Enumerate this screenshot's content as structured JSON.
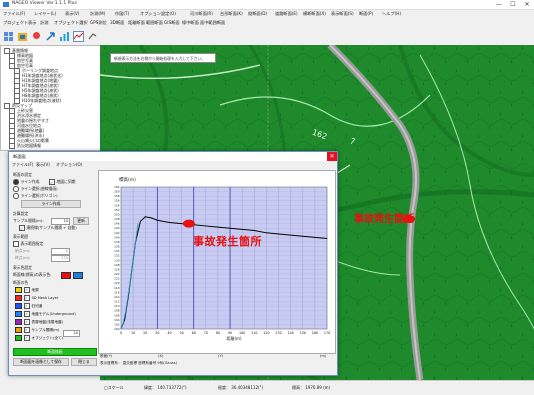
{
  "window": {
    "title": "NAGEO Viewer Ver.1.1.1 Plus",
    "controls": [
      "—",
      "☐",
      "✕"
    ]
  },
  "menubar": [
    "ファイル(F)",
    "レイヤー(L)",
    "表示(V)",
    "計測(M)",
    "作図(T)",
    "オプション設定(O)",
    "河川断面(R)",
    "台形断面(K)",
    "縦断面(D)",
    "道路断面(E)",
    "横断断面(X)",
    "表示断面(S)",
    "断面(P)",
    "ヘルプ(H)"
  ],
  "subbar": [
    "プロジェクト",
    "表示",
    "計測",
    "オブジェクト選択",
    "GPS測位",
    "3D断面",
    "距離断面",
    "範囲断面",
    "GIS断面",
    "線中断面",
    "面中範囲断面"
  ],
  "tree": [
    {
      "label": "基盤情報",
      "indent": 0
    },
    {
      "label": "標高地図",
      "indent": 1
    },
    {
      "label": "航空写真",
      "indent": 1
    },
    {
      "label": "航空写真",
      "indent": 1
    },
    {
      "label": "ボーリング調査地点",
      "indent": 2
    },
    {
      "label": "H1年調査地点(液状化)",
      "indent": 2
    },
    {
      "label": "H1年調査地点(地震)",
      "indent": 2
    },
    {
      "label": "H7年調査地点(液状)",
      "indent": 2
    },
    {
      "label": "H5年調査地点(液状)",
      "indent": 2
    },
    {
      "label": "H8年調査地点(液状)",
      "indent": 2
    },
    {
      "label": "H10年調査地点(液状)",
      "indent": 2
    },
    {
      "label": "防災マップ",
      "indent": 0
    },
    {
      "label": "土砂災害",
      "indent": 1
    },
    {
      "label": "洪水浸水想定",
      "indent": 1
    },
    {
      "label": "地震の揺れやすさ",
      "indent": 1
    },
    {
      "label": "河道水位地点",
      "indent": 1
    },
    {
      "label": "避難場所(地震)",
      "indent": 1
    },
    {
      "label": "避難場所(洪水)",
      "indent": 1
    },
    {
      "label": "火山噴火口の影響",
      "indent": 1
    },
    {
      "label": "防災地図情報",
      "indent": 1
    }
  ],
  "map": {
    "tooltip": "新規表示方法を右側から開始処理を入力して下さい。",
    "label_162": "162",
    "label_7": "7",
    "annotation": "事故発生箇所"
  },
  "statusbar": {
    "scale": "□スケール",
    "coord1": "緯度： 140.733772(°)",
    "coord2": "経度： 36.40348112(°)",
    "elevation": "標高： 1976.89 (m)"
  },
  "dialog": {
    "title": "断面図",
    "menu": [
      "ファイル(F)",
      "表示(V)",
      "オプション(O)"
    ],
    "section_display": "断面の設定",
    "radio_line": "ライン作成",
    "check_section": "地図に同期",
    "radio_polyline": "ライン選択(曲線描画)",
    "radio_polygon": "ライン選択(ポリゴン)",
    "btn_line": "ライン作成",
    "section_calc": "計算設定",
    "sampling_label": "サンプル間隔(m):",
    "sampling_value": "10",
    "btn_update": "更新",
    "check_continuous": "連続線(サンプル間隔 + 自動)",
    "section_range": "表示範囲",
    "check_range": "表示範囲指定",
    "start_label": "始点(m):",
    "start_value": "0",
    "end_label": "終点(m):",
    "end_value": "170",
    "section_color": "表示色設定",
    "color_label": "断面線(標高)の表示色:",
    "legend_title": "断面の色",
    "legend": [
      {
        "label": "地層",
        "color": "#f0d000"
      },
      {
        "label": "3D Mesh Layer",
        "color": "#ff2020"
      },
      {
        "label": "旧河道",
        "color": "#2050ff"
      },
      {
        "label": "地盤モデル(Underground)",
        "color": "#2080ff"
      },
      {
        "label": "表層地盤(浅層地盤)",
        "color": "#a020c0"
      },
      {
        "label": "サンプル間隔(m)",
        "color": "#f0a000"
      },
      {
        "label": "オブジェクト(全て)",
        "color": "#20c020"
      }
    ],
    "sample_value": "10",
    "btn_draw": "断面描画",
    "btn_save": "断面図を画像として保存",
    "btn_close": "閉じる",
    "status_label": "断面(Y)",
    "status_x": "(X)",
    "status_m": "(m)",
    "status_bottom": "表示座標系： 直交座標 座標系番号  9系(Gauss)",
    "annotation": "事故発生箇所",
    "check_y": "(Y)"
  },
  "chart_data": {
    "type": "line",
    "title": "標高(m)",
    "xlabel": "距離(m)",
    "ylabel": "",
    "xlim": [
      0,
      170
    ],
    "ylim": [
      100,
      162
    ],
    "x_ticks": [
      0,
      10,
      20,
      30,
      40,
      50,
      60,
      70,
      80,
      90,
      100,
      110,
      120,
      130,
      140,
      150,
      160,
      170
    ],
    "y_ticks": [
      100,
      102,
      104,
      106,
      108,
      110,
      112,
      114,
      116,
      118,
      120,
      122,
      124,
      126,
      128,
      130,
      132,
      134,
      136,
      138,
      140,
      142,
      144,
      146,
      148,
      150,
      152,
      154,
      156,
      158,
      160,
      162
    ],
    "series": [
      {
        "color": "#000000",
        "x": [
          0,
          3,
          6,
          9,
          12,
          16,
          20,
          25,
          30,
          40,
          50,
          60,
          70,
          80,
          90,
          100,
          110,
          120,
          130,
          140,
          150,
          160,
          170
        ],
        "y": [
          100,
          104,
          114,
          126,
          138,
          147,
          149,
          148.5,
          147.5,
          146.5,
          146,
          145.5,
          145,
          144.5,
          144,
          143.5,
          143,
          142,
          141.5,
          141,
          140.5,
          140,
          139.5
        ]
      },
      {
        "color": "#20a0c0",
        "x": [
          0,
          2,
          4,
          6,
          8,
          10,
          12,
          14
        ],
        "y": [
          100,
          103,
          108,
          115,
          122,
          130,
          138,
          146
        ]
      }
    ],
    "marker": {
      "x": 56,
      "y": 146,
      "color": "#e81010"
    },
    "grid": true,
    "background": "#c8ccf2"
  }
}
